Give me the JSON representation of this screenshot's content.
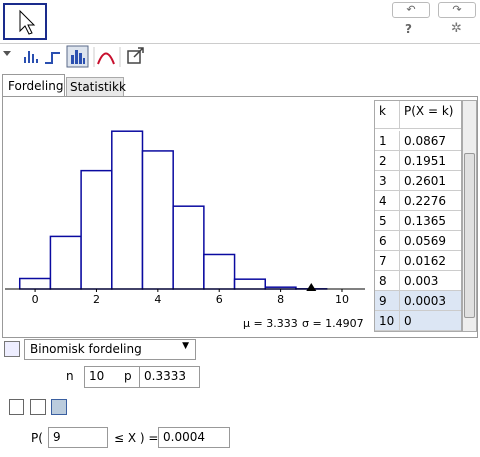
{
  "toolbar": {
    "help": "?"
  },
  "tabs": [
    "Fordeling",
    "Statistikk"
  ],
  "chart_data": {
    "type": "histogram",
    "bins": [
      -0.5,
      0.5,
      1.5,
      2.5,
      3.5,
      4.5,
      5.5,
      6.5,
      7.5,
      8.5,
      9.5,
      10.5
    ],
    "values": [
      0.0173,
      0.0867,
      0.1951,
      0.2601,
      0.2276,
      0.1365,
      0.0569,
      0.0162,
      0.003,
      0.0003,
      0
    ],
    "color": "#0a0aa0",
    "xlim": [
      -0.98,
      10.75
    ],
    "xticks": [
      0,
      2,
      4,
      6,
      8,
      10
    ],
    "ylim": [
      0,
      0.3
    ],
    "mean_label": "μ = 3.333",
    "sd_label": "σ = 1.4907"
  },
  "table": {
    "header": [
      "k",
      "P(X = k)"
    ],
    "rows": [
      [
        "1",
        "0.0867"
      ],
      [
        "2",
        "0.1951"
      ],
      [
        "3",
        "0.2601"
      ],
      [
        "4",
        "0.2276"
      ],
      [
        "5",
        "0.1365"
      ],
      [
        "6",
        "0.0569"
      ],
      [
        "7",
        "0.0162"
      ],
      [
        "8",
        "0.003"
      ],
      [
        "9",
        "0.0003"
      ],
      [
        "10",
        "0"
      ]
    ]
  },
  "controls": {
    "distribution": "Binomisk fordeling",
    "n_label": "n",
    "n": 10,
    "p_label": "p",
    "p": 0.3333,
    "prob_prefix": "P(",
    "lower": 9,
    "prob_middle": "≤ X ) =",
    "result": "0.0004"
  }
}
